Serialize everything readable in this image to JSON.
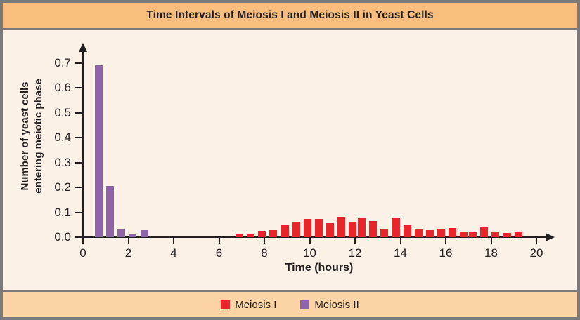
{
  "header": {
    "title": "Time Intervals of Meiosis I and Meiosis II in Yeast Cells"
  },
  "colors": {
    "frame_border": "#7a7a7a",
    "header_bg": "#f9bd7d",
    "footer_bg": "#fcd3a4",
    "panel_bg": "#fbf1e7",
    "ink": "#231f20",
    "meiosis1_red": "#e8252a",
    "meiosis2_purple": "#8d63aa"
  },
  "chart_data": {
    "type": "bar",
    "title": "Time Intervals of Meiosis I and Meiosis II in Yeast Cells",
    "xlabel": "Time (hours)",
    "ylabel": "Number of yeast cells entering meiotic phase",
    "ylabel_lines": [
      "Number of yeast cells",
      "entering meiotic phase"
    ],
    "xlim": [
      0,
      20.8
    ],
    "ylim": [
      0,
      0.74
    ],
    "x_ticks": [
      "0",
      "2",
      "4",
      "6",
      "8",
      "10",
      "12",
      "14",
      "16",
      "18",
      "20"
    ],
    "y_ticks": [
      "0.0",
      "0.1",
      "0.2",
      "0.3",
      "0.4",
      "0.5",
      "0.6",
      "0.7"
    ],
    "grid": false,
    "legend_position": "bottom",
    "bar_width_hours": 0.34,
    "series": [
      {
        "name": "Meiosis I",
        "color": "#e8252a",
        "points": [
          [
            6.9,
            0.012
          ],
          [
            7.4,
            0.011
          ],
          [
            7.9,
            0.025
          ],
          [
            8.4,
            0.027
          ],
          [
            8.9,
            0.047
          ],
          [
            9.4,
            0.063
          ],
          [
            9.9,
            0.072
          ],
          [
            10.4,
            0.074
          ],
          [
            10.9,
            0.055
          ],
          [
            11.4,
            0.081
          ],
          [
            11.9,
            0.063
          ],
          [
            12.3,
            0.077
          ],
          [
            12.8,
            0.065
          ],
          [
            13.3,
            0.033
          ],
          [
            13.8,
            0.076
          ],
          [
            14.3,
            0.047
          ],
          [
            14.8,
            0.033
          ],
          [
            15.3,
            0.027
          ],
          [
            15.8,
            0.035
          ],
          [
            16.3,
            0.037
          ],
          [
            16.8,
            0.022
          ],
          [
            17.2,
            0.019
          ],
          [
            17.7,
            0.039
          ],
          [
            18.2,
            0.022
          ],
          [
            18.7,
            0.018
          ],
          [
            19.2,
            0.021
          ]
        ]
      },
      {
        "name": "Meiosis II",
        "color": "#8d63aa",
        "points": [
          [
            0.7,
            0.69
          ],
          [
            1.2,
            0.205
          ],
          [
            1.7,
            0.03
          ],
          [
            2.2,
            0.01
          ],
          [
            2.7,
            0.028
          ]
        ]
      }
    ]
  }
}
